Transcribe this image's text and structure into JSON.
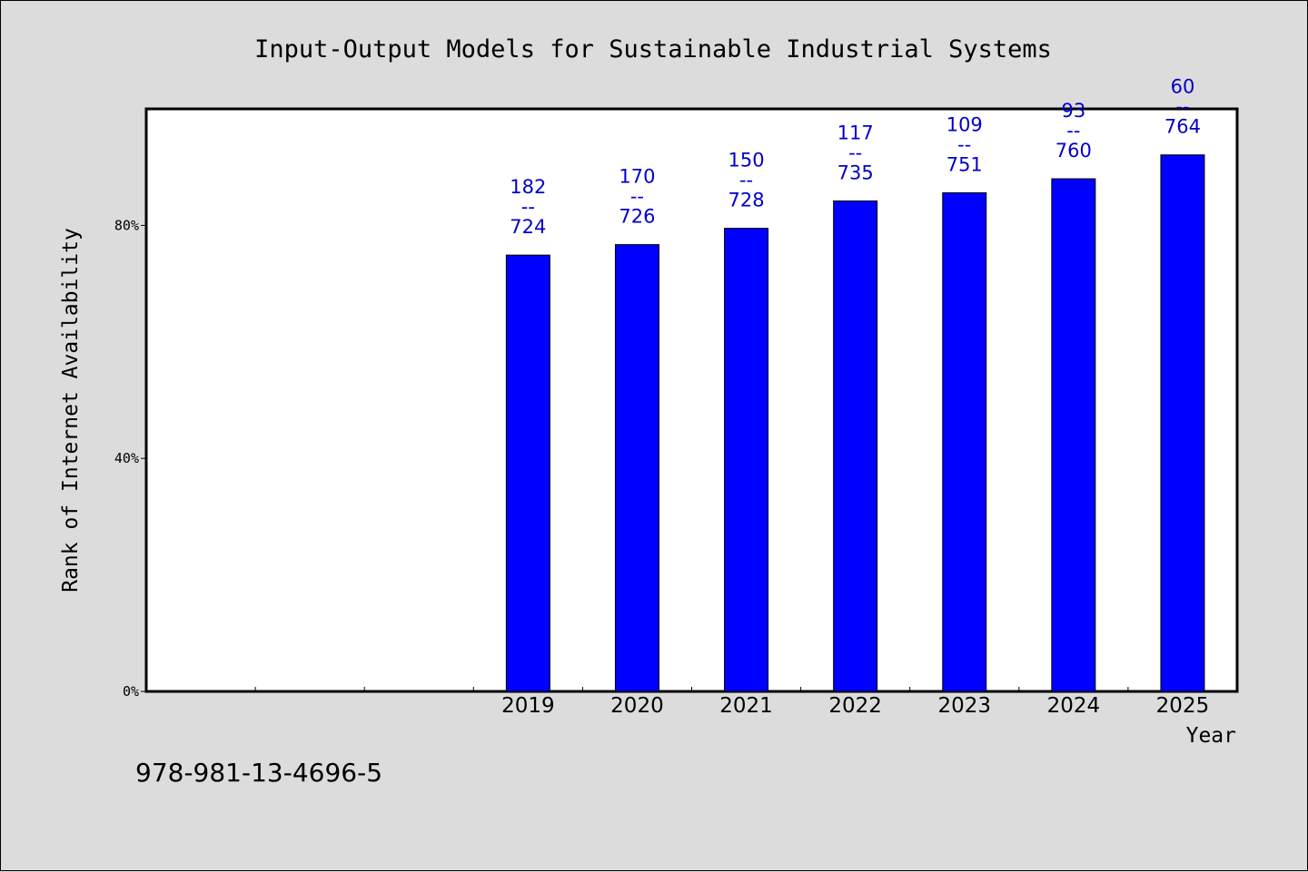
{
  "footer_code": "978-981-13-4696-5",
  "chart_data": {
    "type": "bar",
    "title": "Input-Output Models for Sustainable Industrial Systems",
    "xlabel": "Year",
    "ylabel": "Rank of Internet Availability",
    "categories": [
      "2019",
      "2020",
      "2021",
      "2022",
      "2023",
      "2024",
      "2025"
    ],
    "values": [
      74.9,
      76.7,
      79.5,
      84.2,
      85.6,
      88.0,
      92.1
    ],
    "ranks": [
      182,
      170,
      150,
      117,
      109,
      93,
      60
    ],
    "totals": [
      724,
      726,
      728,
      735,
      751,
      760,
      764
    ],
    "label_separator": "--",
    "x_slots": 10,
    "ylim": [
      0,
      100
    ],
    "yticks": [
      0,
      40,
      80
    ],
    "ytick_labels": [
      "0%",
      "40%",
      "80%"
    ],
    "bar_color": "#0000ff",
    "label_color": "#0000cc",
    "grid": false
  }
}
